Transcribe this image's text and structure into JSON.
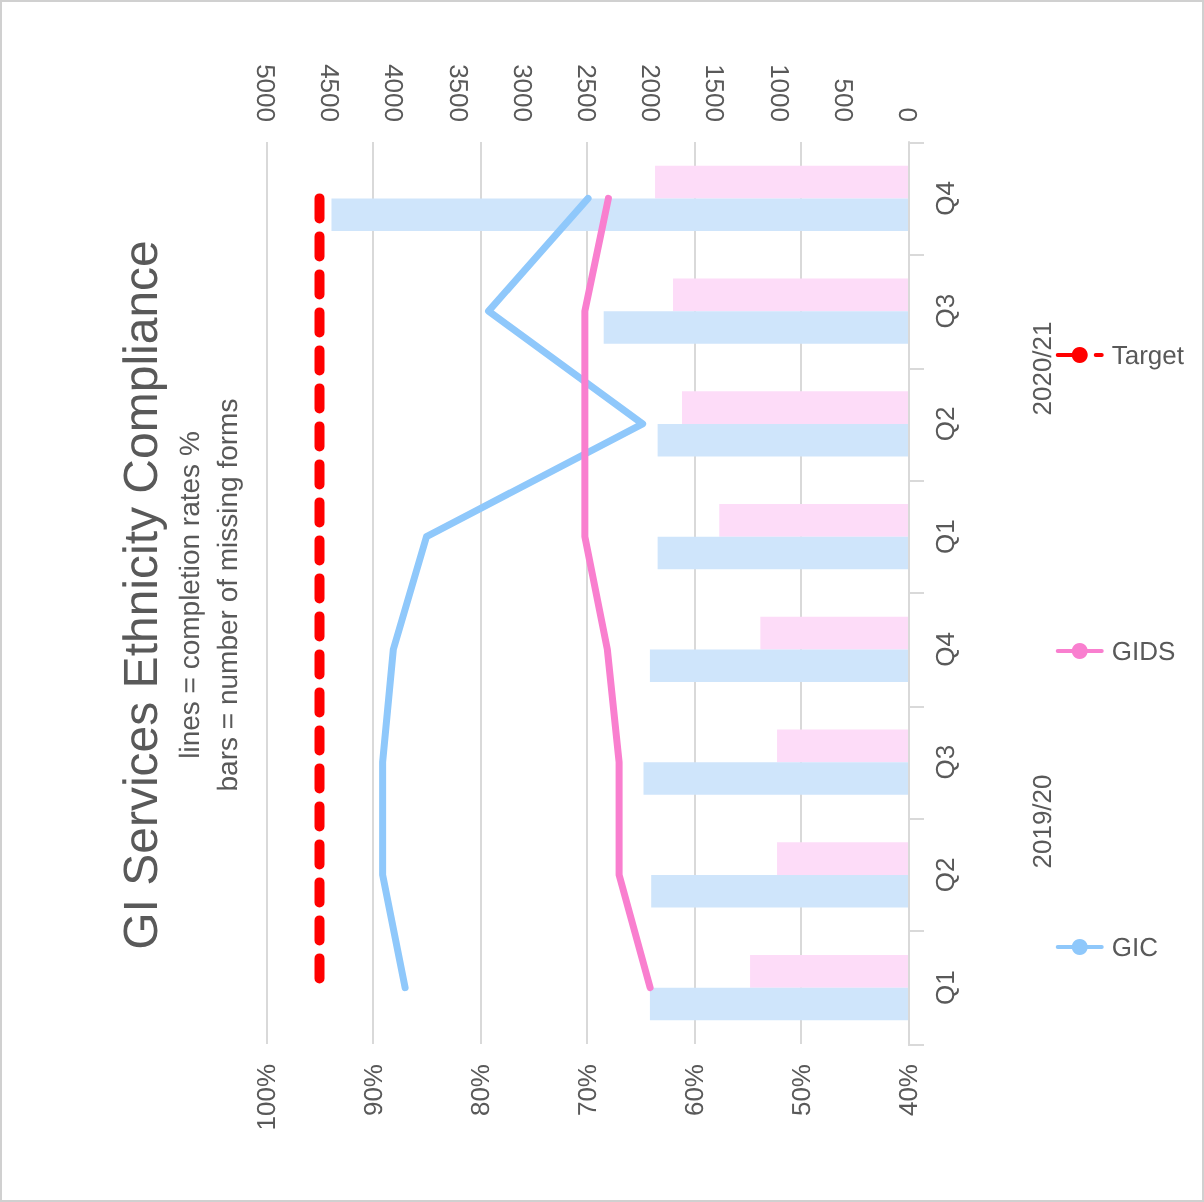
{
  "chart_data": {
    "type": "bar",
    "orientation": "horizontal",
    "title": "GI Services Ethnicity Compliance",
    "subtitle": "lines = completion rates %\nbars = number of missing forms",
    "categories": [
      "Q4",
      "Q3",
      "Q2",
      "Q1",
      "Q4",
      "Q3",
      "Q2",
      "Q1"
    ],
    "annotations": [
      "2020/21",
      "2019/20"
    ],
    "series": [
      {
        "axis": "x2",
        "color": "#fddcf8",
        "values": [
          1970,
          1830,
          1760,
          1470,
          1150,
          1020,
          1020,
          1230
        ]
      },
      {
        "axis": "x2",
        "color": "#cfe5fb",
        "values": [
          4490,
          2370,
          1950,
          1950,
          2010,
          2060,
          2000,
          2010
        ]
      },
      {
        "type": "line",
        "name": "GIC",
        "color": "#8fc8fb",
        "line_style": "solid",
        "values": [
          69.9,
          79.2,
          64.8,
          85.0,
          88.1,
          89.1,
          89.1,
          87.0
        ]
      },
      {
        "type": "line",
        "name": "GIDS",
        "color": "#f97fcf",
        "line_style": "solid",
        "values": [
          68.0,
          70.2,
          70.2,
          70.2,
          68.1,
          67.0,
          67.0,
          64.1
        ]
      },
      {
        "type": "line",
        "name": "Target",
        "color": "#ff0000",
        "line_style": "dashed",
        "values": [
          95,
          95,
          95,
          95,
          95,
          95,
          95,
          95
        ]
      }
    ],
    "xlim": [
      100,
      40
    ],
    "xticks": [
      {
        "value": 100,
        "label": "100%"
      },
      {
        "value": 90,
        "label": "90%"
      },
      {
        "value": 80,
        "label": "80%"
      },
      {
        "value": 70,
        "label": "70%"
      },
      {
        "value": 60,
        "label": "60%"
      },
      {
        "value": 50,
        "label": "50%"
      },
      {
        "value": 40,
        "label": "40%"
      }
    ],
    "x2lim": [
      5000,
      0
    ],
    "x2ticks": [
      5000,
      4500,
      4000,
      3500,
      3000,
      2500,
      2000,
      1500,
      1000,
      500,
      0
    ],
    "grid": "x",
    "legend": "right",
    "marker": "none"
  }
}
